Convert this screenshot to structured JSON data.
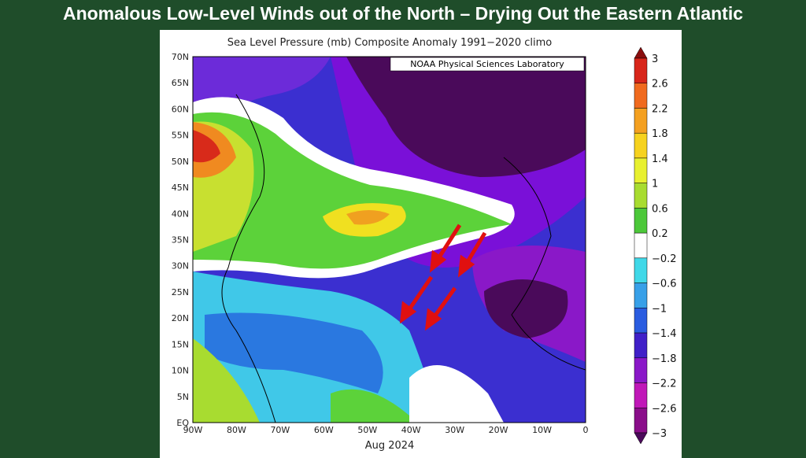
{
  "header": {
    "title": "Anomalous Low-Level Winds out of the North – Drying Out the Eastern Atlantic"
  },
  "map": {
    "title": "Sea Level Pressure (mb) Composite Anomaly 1991−2020 climo",
    "credit": "NOAA Physical Sciences Laboratory",
    "latitude_labels": [
      "70N",
      "65N",
      "60N",
      "55N",
      "50N",
      "45N",
      "40N",
      "35N",
      "30N",
      "25N",
      "20N",
      "15N",
      "10N",
      "5N",
      "EQ"
    ],
    "longitude_labels": [
      "90W",
      "80W",
      "70W",
      "60W",
      "50W",
      "40W",
      "30W",
      "20W",
      "10W",
      "0"
    ],
    "date": "Aug 2024",
    "colorbar_labels": [
      "3",
      "2.6",
      "2.2",
      "1.8",
      "1.4",
      "1",
      "0.6",
      "0.2",
      "−0.2",
      "−0.6",
      "−1",
      "−1.4",
      "−1.8",
      "−2.2",
      "−2.6",
      "−3"
    ]
  }
}
